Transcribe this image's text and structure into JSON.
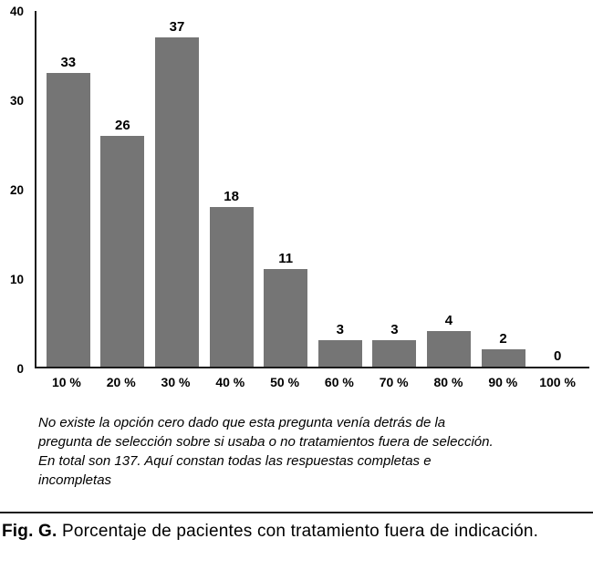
{
  "chart_data": {
    "type": "bar",
    "categories": [
      "10 %",
      "20 %",
      "30 %",
      "40 %",
      "50 %",
      "60 %",
      "70 %",
      "80 %",
      "90 %",
      "100 %"
    ],
    "values": [
      33,
      26,
      37,
      18,
      11,
      3,
      3,
      4,
      2,
      0
    ],
    "title": "",
    "xlabel": "",
    "ylabel": "",
    "ylim": [
      0,
      40
    ],
    "yticks": [
      0,
      10,
      20,
      30,
      40
    ],
    "bar_color": "#757575",
    "axis_color": "#1a1a1a",
    "grid": false,
    "legend": "none",
    "value_labels": true
  },
  "note_lines": [
    "No existe la opción cero dado que esta pregunta venía detrás de la",
    "pregunta de selección sobre si usaba o no tratamientos fuera de selección.",
    "En total son 137. Aquí constan todas las respuestas completas e",
    "incompletas"
  ],
  "caption": {
    "label": "Fig. G.",
    "text": "Porcentaje de pacientes con tratamiento fuera de indicación."
  }
}
